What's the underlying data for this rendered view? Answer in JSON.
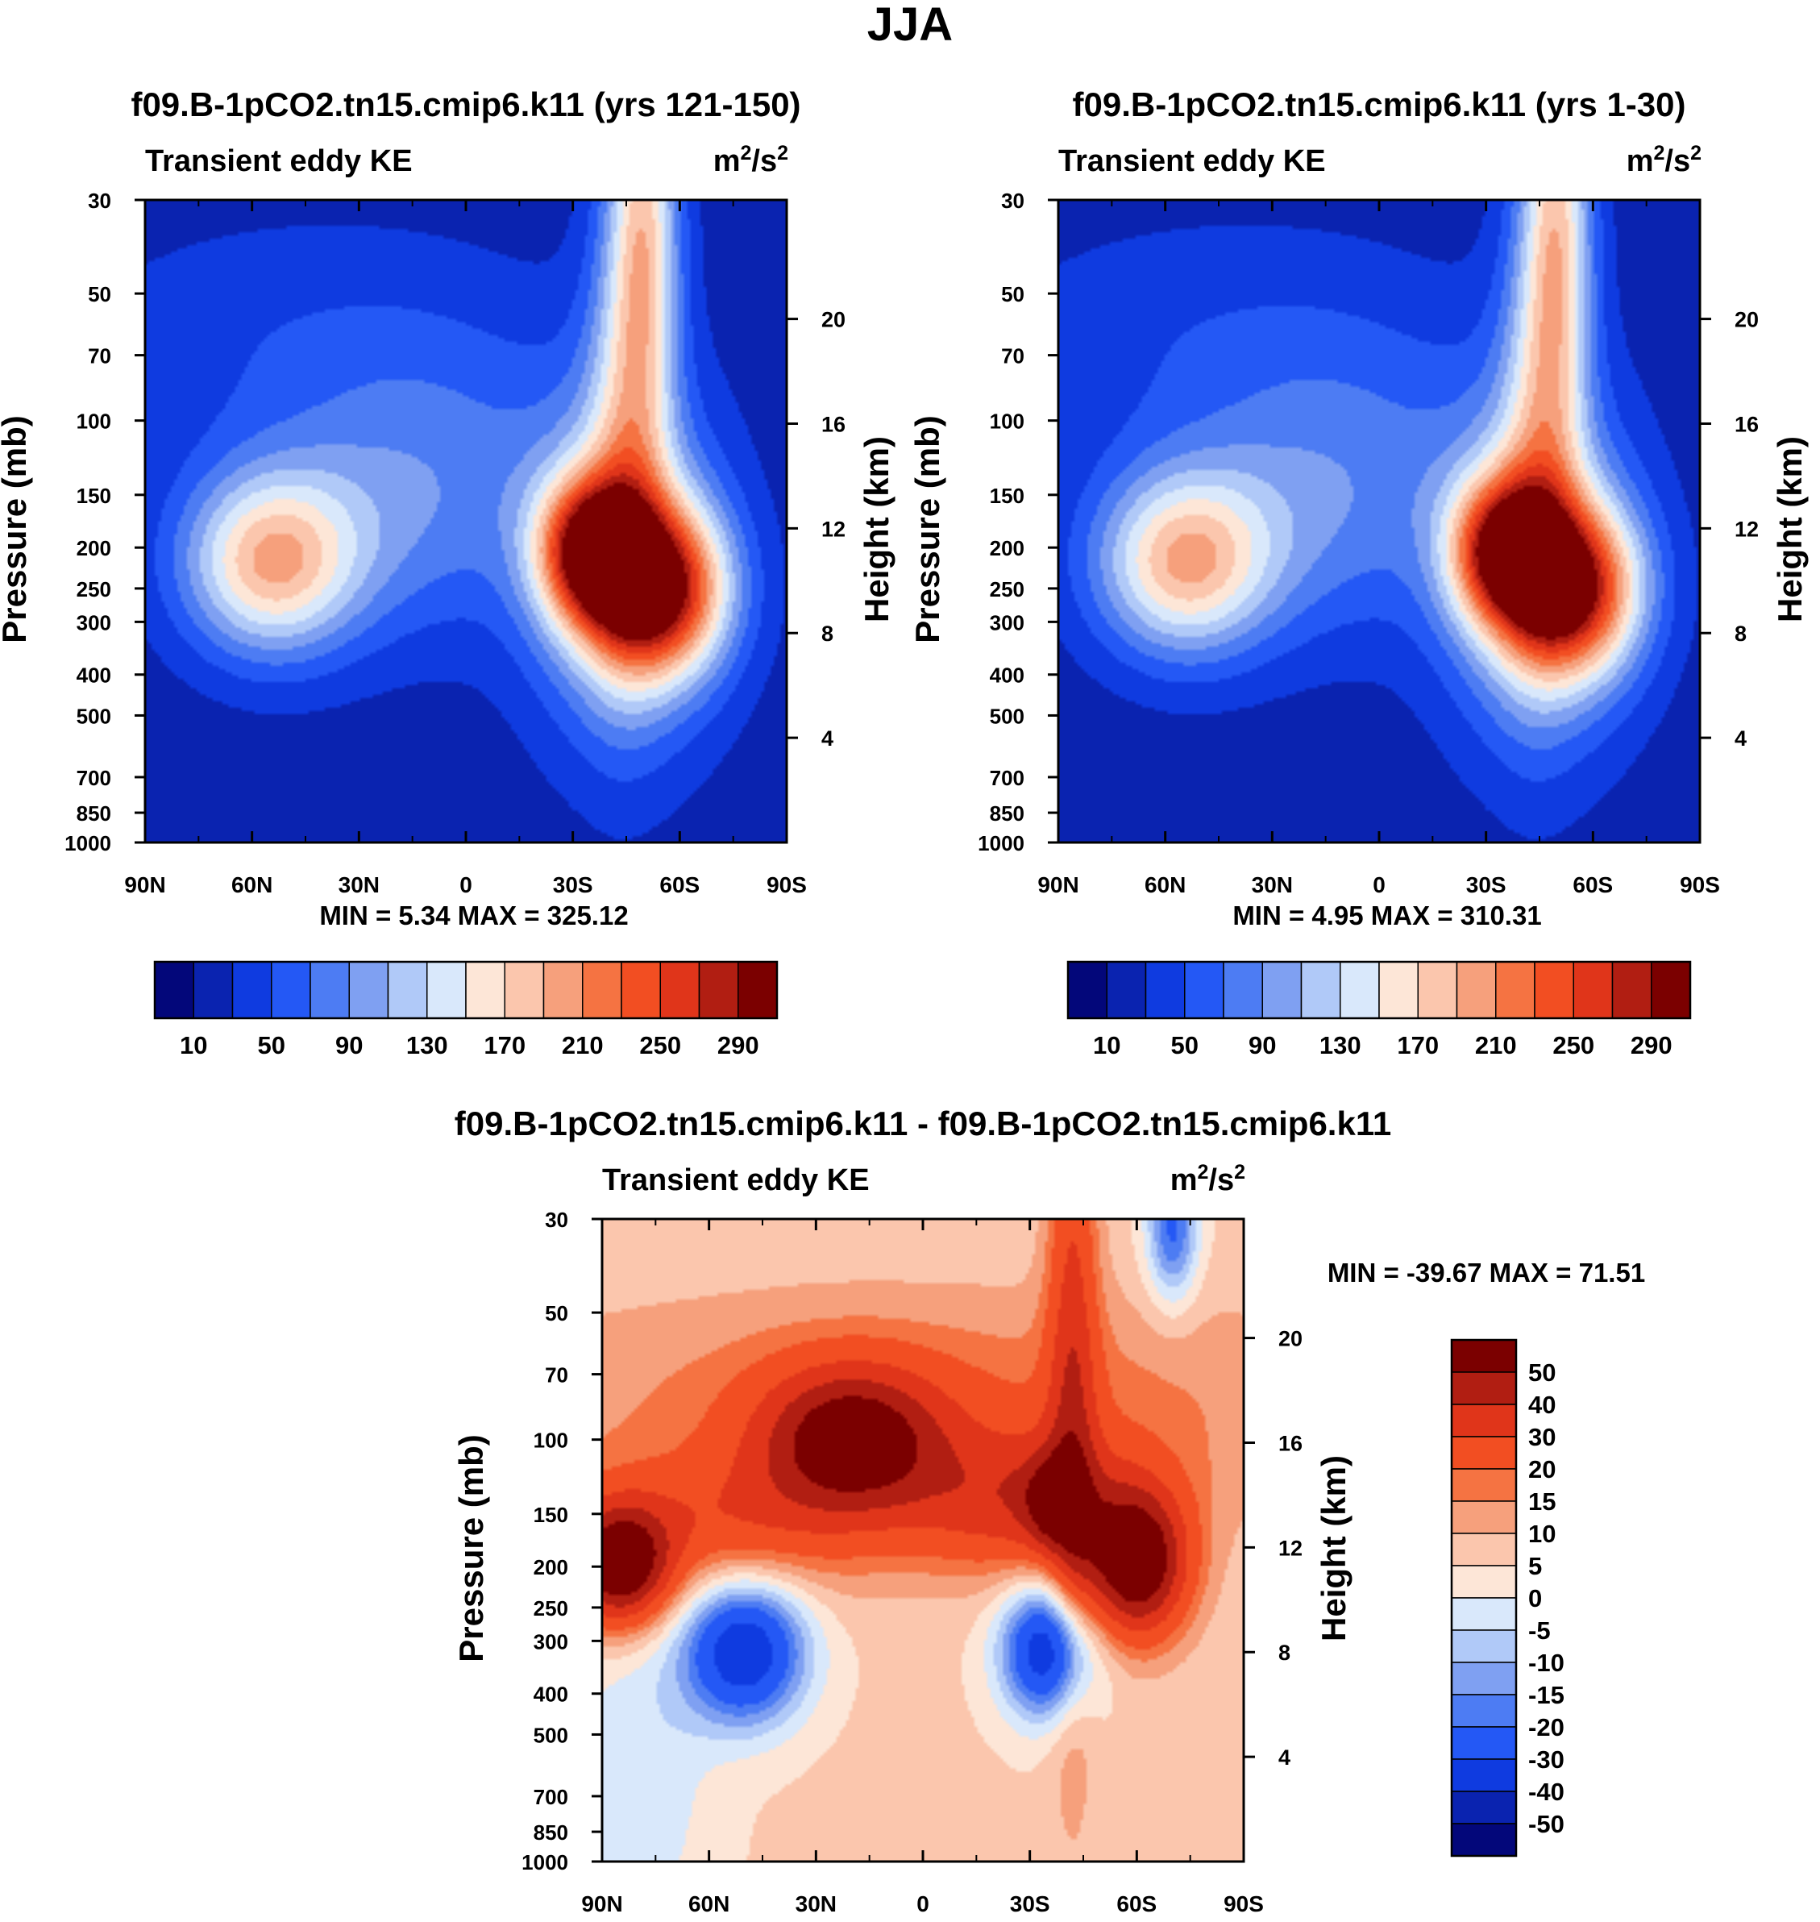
{
  "figure_title": "JJA",
  "chart_data": [
    {
      "type": "heatmap",
      "title": "f09.B-1pCO2.tn15.cmip6.k11 (yrs 121-150)",
      "subtitle_left": "Transient eddy KE",
      "units": "m2/s2",
      "units_base": "m",
      "units_exp1": "2",
      "units_mid": "/s",
      "units_exp2": "2",
      "xlabel": "",
      "ylabel": "Pressure (mb)",
      "ylabel_right": "Height (km)",
      "x_ticks": [
        "90N",
        "60N",
        "30N",
        "0",
        "30S",
        "60S",
        "90S"
      ],
      "y_ticks": [
        "30",
        "50",
        "70",
        "100",
        "150",
        "200",
        "250",
        "300",
        "400",
        "500",
        "700",
        "850",
        "1000"
      ],
      "y_ticks_right": [
        "20",
        "16",
        "12",
        "8",
        "4"
      ],
      "min_max_text": "MIN =   5.34  MAX = 325.12",
      "min": 5.34,
      "max": 325.12,
      "colorbar_levels": [
        10,
        30,
        50,
        70,
        90,
        110,
        130,
        150,
        170,
        190,
        210,
        230,
        250,
        270,
        290
      ],
      "colorbar_labels": [
        "10",
        "50",
        "90",
        "130",
        "170",
        "210",
        "250",
        "290"
      ],
      "features": [
        {
          "lat": -35,
          "p": 200,
          "value": 300
        },
        {
          "lat": -55,
          "p": 265,
          "value": 325
        },
        {
          "lat": 55,
          "p": 220,
          "value": 190
        },
        {
          "lat": -50,
          "p": 30,
          "value": 175
        }
      ]
    },
    {
      "type": "heatmap",
      "title": "f09.B-1pCO2.tn15.cmip6.k11 (yrs 1-30)",
      "subtitle_left": "Transient eddy KE",
      "units": "m2/s2",
      "units_base": "m",
      "units_exp1": "2",
      "units_mid": "/s",
      "units_exp2": "2",
      "xlabel": "",
      "ylabel": "Pressure (mb)",
      "ylabel_right": "Height (km)",
      "x_ticks": [
        "90N",
        "60N",
        "30N",
        "0",
        "30S",
        "60S",
        "90S"
      ],
      "y_ticks": [
        "30",
        "50",
        "70",
        "100",
        "150",
        "200",
        "250",
        "300",
        "400",
        "500",
        "700",
        "850",
        "1000"
      ],
      "y_ticks_right": [
        "20",
        "16",
        "12",
        "8",
        "4"
      ],
      "min_max_text": "MIN =   4.95  MAX = 310.31",
      "min": 4.95,
      "max": 310.31,
      "colorbar_levels": [
        10,
        30,
        50,
        70,
        90,
        110,
        130,
        150,
        170,
        190,
        210,
        230,
        250,
        270,
        290
      ],
      "colorbar_labels": [
        "10",
        "50",
        "90",
        "130",
        "170",
        "210",
        "250",
        "290"
      ],
      "features": [
        {
          "lat": -33,
          "p": 250,
          "value": 300
        },
        {
          "lat": -48,
          "p": 285,
          "value": 290
        },
        {
          "lat": 57,
          "p": 260,
          "value": 180
        },
        {
          "lat": -55,
          "p": 30,
          "value": 170
        }
      ]
    },
    {
      "type": "heatmap",
      "title": "f09.B-1pCO2.tn15.cmip6.k11 - f09.B-1pCO2.tn15.cmip6.k11",
      "subtitle_left": "Transient eddy KE",
      "units": "m2/s2",
      "units_base": "m",
      "units_exp1": "2",
      "units_mid": "/s",
      "units_exp2": "2",
      "xlabel": "",
      "ylabel": "Pressure (mb)",
      "ylabel_right": "Height (km)",
      "x_ticks": [
        "90N",
        "60N",
        "30N",
        "0",
        "30S",
        "60S",
        "90S"
      ],
      "y_ticks": [
        "30",
        "50",
        "70",
        "100",
        "150",
        "200",
        "250",
        "300",
        "400",
        "500",
        "700",
        "850",
        "1000"
      ],
      "y_ticks_right": [
        "20",
        "16",
        "12",
        "8",
        "4"
      ],
      "min_max_text": "MIN = -39.67  MAX =  71.51",
      "min": -39.67,
      "max": 71.51,
      "colorbar_levels": [
        50,
        40,
        30,
        20,
        15,
        10,
        5,
        0,
        -5,
        -10,
        -15,
        -20,
        -30,
        -40,
        -50
      ],
      "colorbar_labels": [
        "50",
        "40",
        "30",
        "20",
        "15",
        "10",
        "5",
        "0",
        "-5",
        "-10",
        "-15",
        "-20",
        "-30",
        "-40",
        "-50"
      ],
      "features": [
        {
          "lat": 50,
          "p": 330,
          "value": -30
        },
        {
          "lat": -35,
          "p": 330,
          "value": -28
        },
        {
          "lat": -60,
          "p": 200,
          "value": 65
        },
        {
          "lat": 20,
          "p": 100,
          "value": 55
        },
        {
          "lat": 85,
          "p": 200,
          "value": 60
        },
        {
          "lat": -70,
          "p": 35,
          "value": -15
        }
      ]
    }
  ],
  "colors": {
    "seq": [
      "#03077a",
      "#0a23b0",
      "#0f3be0",
      "#2458f5",
      "#4d7cf3",
      "#7fa0f2",
      "#b0c9f8",
      "#d9e8fb",
      "#fde6d7",
      "#fbc6ad",
      "#f6a07c",
      "#f57342",
      "#f24e22",
      "#e0351a",
      "#b11e12",
      "#7b0000"
    ],
    "diff": [
      "#7b0000",
      "#b11e12",
      "#e0351a",
      "#f24e22",
      "#f57342",
      "#f6a07c",
      "#fbc6ad",
      "#fde6d7",
      "#d9e8fb",
      "#b0c9f8",
      "#7fa0f2",
      "#4d7cf3",
      "#2458f5",
      "#0f3be0",
      "#0a23b0",
      "#03077a"
    ]
  }
}
